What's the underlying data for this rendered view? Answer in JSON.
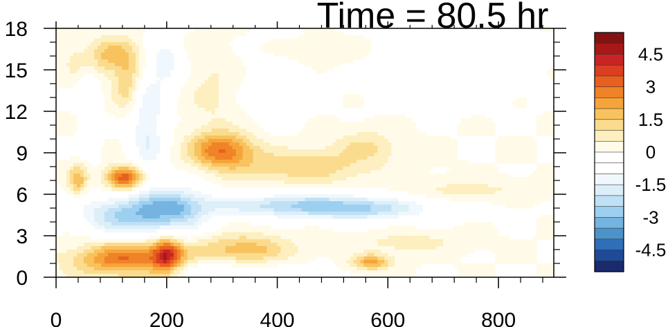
{
  "chart_data": {
    "type": "heatmap",
    "title": "Time = 80.5 hr",
    "xlabel": "",
    "ylabel": "",
    "xlim": [
      0,
      900
    ],
    "ylim": [
      0,
      18
    ],
    "x_ticks": [
      "0",
      "200",
      "400",
      "600",
      "800"
    ],
    "x_tick_values": [
      0,
      200,
      400,
      600,
      800
    ],
    "y_ticks": [
      "0",
      "3",
      "6",
      "9",
      "12",
      "15",
      "18"
    ],
    "y_tick_values": [
      0,
      3,
      6,
      9,
      12,
      15,
      18
    ],
    "grid": false,
    "colorbar": {
      "levels": [
        -5.5,
        -5,
        -4.5,
        -4,
        -3.5,
        -3,
        -2.5,
        -2,
        -1.5,
        -1,
        -0.5,
        0,
        0.5,
        1,
        1.5,
        2,
        2.5,
        3,
        3.5,
        4,
        4.5,
        5,
        5.5
      ],
      "labels": [
        "4.5",
        "3",
        "1.5",
        "0",
        "-1.5",
        "-3",
        "-4.5"
      ],
      "label_values": [
        4.5,
        3,
        1.5,
        0,
        -1.5,
        -3,
        -4.5
      ],
      "colors": [
        "#1a2a6c",
        "#1f4a99",
        "#2f6fb8",
        "#4c93cc",
        "#75b4e0",
        "#9dd0f0",
        "#bfe0f5",
        "#dceff9",
        "#f0f8fd",
        "#ffffff",
        "#ffffff",
        "#fffbe8",
        "#fdefbf",
        "#fbdc8e",
        "#f8c25e",
        "#f6a43a",
        "#f08327",
        "#e8601f",
        "#dc3e20",
        "#c82424",
        "#a81818",
        "#851212"
      ]
    },
    "features": [
      {
        "x": 130,
        "y": 1.2,
        "sx": 70,
        "sy": 0.9,
        "v": 3.2
      },
      {
        "x": 200,
        "y": 1.6,
        "sx": 18,
        "sy": 0.9,
        "v": 3.0
      },
      {
        "x": 340,
        "y": 2.0,
        "sx": 60,
        "sy": 0.8,
        "v": 1.8
      },
      {
        "x": 570,
        "y": 1.1,
        "sx": 25,
        "sy": 0.4,
        "v": 2.2
      },
      {
        "x": 640,
        "y": 2.5,
        "sx": 60,
        "sy": 0.5,
        "v": 0.8
      },
      {
        "x": 250,
        "y": 0.6,
        "sx": 120,
        "sy": 0.5,
        "v": -1.0
      },
      {
        "x": 130,
        "y": 4.5,
        "sx": 60,
        "sy": 1.0,
        "v": -2.6
      },
      {
        "x": 220,
        "y": 5.0,
        "sx": 40,
        "sy": 1.2,
        "v": -2.0
      },
      {
        "x": 450,
        "y": 5.2,
        "sx": 130,
        "sy": 0.6,
        "v": -2.4
      },
      {
        "x": 560,
        "y": 4.8,
        "sx": 80,
        "sy": 0.5,
        "v": -1.2
      },
      {
        "x": 125,
        "y": 7.2,
        "sx": 25,
        "sy": 0.6,
        "v": 3.6
      },
      {
        "x": 40,
        "y": 7.0,
        "sx": 12,
        "sy": 0.8,
        "v": 1.8
      },
      {
        "x": 300,
        "y": 9.2,
        "sx": 40,
        "sy": 0.9,
        "v": 2.8
      },
      {
        "x": 440,
        "y": 8.0,
        "sx": 90,
        "sy": 0.9,
        "v": 1.4
      },
      {
        "x": 560,
        "y": 9.5,
        "sx": 40,
        "sy": 0.8,
        "v": 1.0
      },
      {
        "x": 740,
        "y": 6.3,
        "sx": 80,
        "sy": 0.5,
        "v": 0.7
      },
      {
        "x": 165,
        "y": 11.0,
        "sx": 22,
        "sy": 3.0,
        "v": -1.6
      },
      {
        "x": 90,
        "y": 16.0,
        "sx": 45,
        "sy": 1.0,
        "v": 1.6
      },
      {
        "x": 130,
        "y": 14.0,
        "sx": 18,
        "sy": 1.5,
        "v": 1.4
      },
      {
        "x": 60,
        "y": 13.0,
        "sx": 14,
        "sy": 3.0,
        "v": -0.8
      },
      {
        "x": 200,
        "y": 15.5,
        "sx": 20,
        "sy": 1.2,
        "v": -1.3
      },
      {
        "x": 280,
        "y": 13.5,
        "sx": 30,
        "sy": 2.5,
        "v": 0.6
      },
      {
        "x": 400,
        "y": 14.0,
        "sx": 40,
        "sy": 2.0,
        "v": -0.5
      },
      {
        "x": 470,
        "y": 16.3,
        "sx": 60,
        "sy": 0.6,
        "v": 0.5
      },
      {
        "x": 680,
        "y": 15.0,
        "sx": 90,
        "sy": 1.5,
        "v": -0.5
      }
    ]
  }
}
